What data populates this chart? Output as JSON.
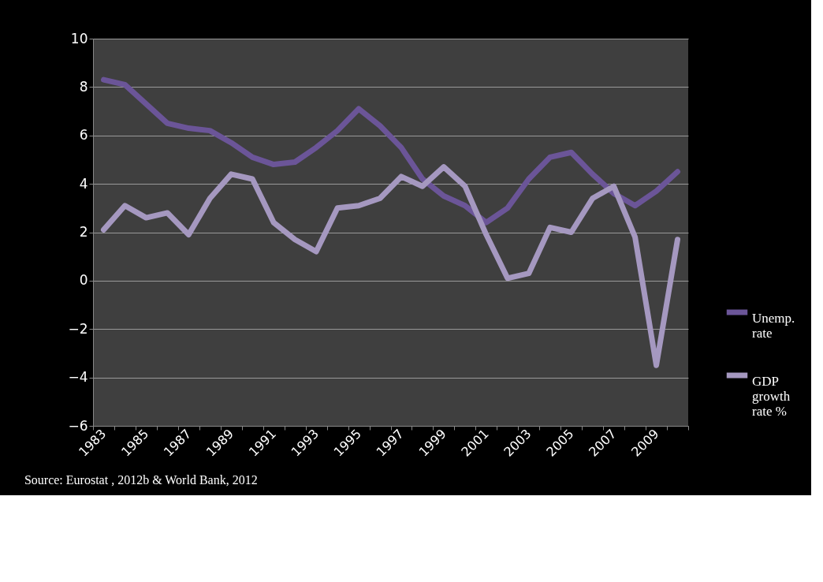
{
  "chart_data": {
    "type": "line",
    "categories": [
      "1983",
      null,
      "1985",
      null,
      "1987",
      null,
      "1989",
      null,
      "1991",
      null,
      "1993",
      null,
      "1995",
      null,
      "1997",
      null,
      "1999",
      null,
      "2001",
      null,
      "2003",
      null,
      "2005",
      null,
      "2007",
      null,
      "2009",
      null
    ],
    "series": [
      {
        "name": "Unemp.\nrate",
        "color": "#6b5598",
        "values": [
          8.3,
          8.1,
          7.3,
          6.5,
          6.3,
          6.2,
          5.7,
          5.1,
          4.8,
          4.9,
          5.5,
          6.2,
          7.1,
          6.4,
          5.5,
          4.2,
          3.5,
          3.1,
          2.4,
          3.0,
          4.2,
          5.1,
          5.3,
          4.4,
          3.6,
          3.1,
          3.7,
          4.5
        ]
      },
      {
        "name": "GDP\ngrowth\nrate %",
        "color": "#a598c0",
        "values": [
          2.1,
          3.1,
          2.6,
          2.8,
          1.9,
          3.4,
          4.4,
          4.2,
          2.4,
          1.7,
          1.2,
          3.0,
          3.1,
          3.4,
          4.3,
          3.9,
          4.7,
          3.9,
          1.9,
          0.1,
          0.3,
          2.2,
          2.0,
          3.4,
          3.9,
          1.8,
          -3.5,
          1.7
        ]
      }
    ],
    "ylim": [
      -6,
      10
    ],
    "yticks": [
      -6,
      -4,
      -2,
      0,
      2,
      4,
      6,
      8,
      10
    ],
    "grid": "y",
    "legend": "right",
    "marker": "none",
    "line_style": "solid",
    "annotations": [
      "Source: Eurostat , 2012b & World Bank, 2012"
    ]
  }
}
